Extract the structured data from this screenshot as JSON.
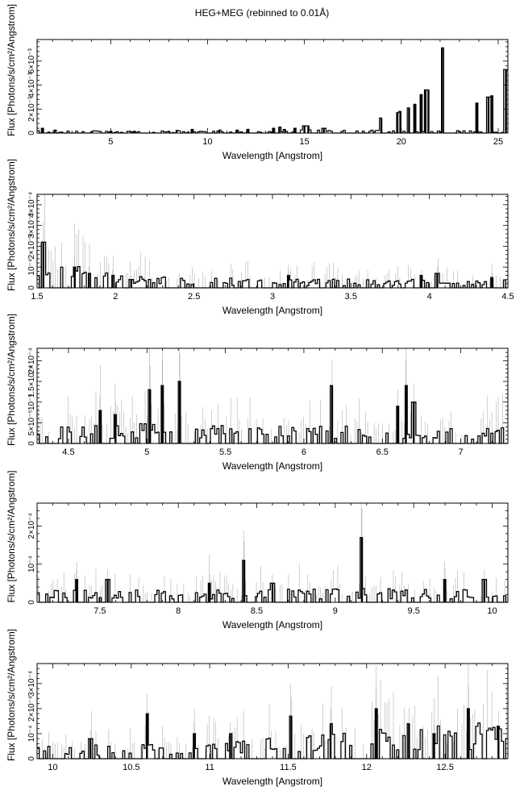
{
  "figure_title": "HEG+MEG (rebinned to 0.01Å)",
  "chart_data": [
    {
      "type": "line",
      "xlabel": "Wavelength [Angstrom]",
      "ylabel": "Flux [Photons/s/cm²/Angstrom]",
      "xlim": [
        1.2,
        25.5
      ],
      "ylim": [
        0,
        0.0078
      ],
      "xticks": [
        5,
        10,
        15,
        20,
        25
      ],
      "xtick_labels": [
        "5",
        "10",
        "15",
        "20",
        "25"
      ],
      "yticks": [
        0,
        0.002,
        0.004,
        0.006
      ],
      "ytick_labels": [
        "0",
        "2×10⁻³",
        "4×10⁻³",
        "6×10⁻³"
      ],
      "continuum": [
        [
          1.2,
          0.00015
        ],
        [
          10,
          0.00012
        ],
        [
          15,
          0.0002
        ],
        [
          25.5,
          0.00012
        ]
      ],
      "lines": [
        [
          1.5,
          0.0004
        ],
        [
          2.1,
          0.00025
        ],
        [
          5.0,
          0.00015
        ],
        [
          6.2,
          0.00015
        ],
        [
          8.4,
          0.00022
        ],
        [
          9.2,
          0.0003
        ],
        [
          10.6,
          0.00025
        ],
        [
          11.5,
          0.00025
        ],
        [
          12.1,
          0.0003
        ],
        [
          13.4,
          0.0004
        ],
        [
          13.7,
          0.0005
        ],
        [
          14.0,
          0.0003
        ],
        [
          14.5,
          0.0004
        ],
        [
          15.0,
          0.0006
        ],
        [
          15.2,
          0.0006
        ],
        [
          16.0,
          0.0004
        ],
        [
          18.97,
          0.00125
        ],
        [
          19.8,
          0.0017
        ],
        [
          19.95,
          0.0018
        ],
        [
          20.4,
          0.0021
        ],
        [
          20.7,
          0.0024
        ],
        [
          21.0,
          0.0032
        ],
        [
          21.25,
          0.0036
        ],
        [
          21.4,
          0.0036
        ],
        [
          22.1,
          0.0071
        ],
        [
          23.9,
          0.0025
        ],
        [
          24.5,
          0.003
        ],
        [
          24.65,
          0.0031
        ],
        [
          25.4,
          0.0053
        ]
      ]
    },
    {
      "type": "line",
      "xlabel": "Wavelength [Angstrom]",
      "ylabel": "Flux [Photons/s/cm²/Angstrom]",
      "xlim": [
        1.5,
        4.5
      ],
      "ylim": [
        0,
        0.00045
      ],
      "xticks": [
        1.5,
        2,
        2.5,
        3,
        3.5,
        4,
        4.5
      ],
      "xtick_labels": [
        "1.5",
        "2",
        "2.5",
        "3",
        "3.5",
        "4",
        "4.5"
      ],
      "yticks": [
        0,
        0.0001,
        0.0002,
        0.0003,
        0.0004
      ],
      "ytick_labels": [
        "0",
        "10⁻⁴",
        "2×10⁻⁴",
        "3×10⁻⁴",
        "4×10⁻⁴"
      ],
      "continuum": [
        [
          1.5,
          0.00012
        ],
        [
          2.0,
          5e-05
        ],
        [
          3.0,
          3e-05
        ],
        [
          4.5,
          3e-05
        ]
      ],
      "lines": [
        [
          1.54,
          0.00022
        ],
        [
          1.74,
          0.0001
        ],
        [
          1.83,
          7e-05
        ],
        [
          1.98,
          6e-05
        ],
        [
          2.1,
          4e-05
        ],
        [
          3.1,
          6e-05
        ],
        [
          3.95,
          6e-05
        ],
        [
          4.05,
          7e-05
        ],
        [
          4.4,
          5e-05
        ]
      ]
    },
    {
      "type": "line",
      "xlabel": "Wavelength [Angstrom]",
      "ylabel": "Flux [Photons/s/cm²/Angstrom]",
      "xlim": [
        4.3,
        7.3
      ],
      "ylim": [
        0,
        0.00023
      ],
      "xticks": [
        4.5,
        5,
        5.5,
        6,
        6.5,
        7
      ],
      "xtick_labels": [
        "4.5",
        "5",
        "5.5",
        "6",
        "6.5",
        "7"
      ],
      "yticks": [
        0,
        5e-05,
        0.0001,
        0.00015,
        0.0002
      ],
      "ytick_labels": [
        "0",
        "5×10⁻⁵",
        "10⁻⁴",
        "1.5×10⁻⁴",
        "2×10⁻⁴"
      ],
      "continuum": [
        [
          4.3,
          3e-05
        ],
        [
          5.0,
          3.5e-05
        ],
        [
          6.0,
          3e-05
        ],
        [
          7.3,
          3e-05
        ]
      ],
      "lines": [
        [
          4.7,
          8e-05
        ],
        [
          4.8,
          7e-05
        ],
        [
          5.02,
          0.00013
        ],
        [
          5.1,
          0.00014
        ],
        [
          5.21,
          0.00015
        ],
        [
          6.18,
          0.00014
        ],
        [
          6.65,
          0.00014
        ],
        [
          6.7,
          0.0001
        ],
        [
          6.6,
          9e-05
        ]
      ]
    },
    {
      "type": "line",
      "xlabel": "Wavelength [Angstrom]",
      "ylabel": "Flux [Photons/s/cm²/Angstrom]",
      "xlim": [
        7.1,
        10.1
      ],
      "ylim": [
        0,
        0.00026
      ],
      "xticks": [
        7.5,
        8,
        8.5,
        9,
        9.5,
        10
      ],
      "xtick_labels": [
        "7.5",
        "8",
        "8.5",
        "9",
        "9.5",
        "10"
      ],
      "yticks": [
        0,
        0.0001,
        0.0002
      ],
      "ytick_labels": [
        "0",
        "10⁻⁴",
        "2×10⁻⁴"
      ],
      "continuum": [
        [
          7.1,
          2.5e-05
        ],
        [
          8.0,
          2.5e-05
        ],
        [
          9.0,
          2.5e-05
        ],
        [
          10.1,
          2.5e-05
        ]
      ],
      "lines": [
        [
          7.35,
          6e-05
        ],
        [
          7.55,
          6e-05
        ],
        [
          8.2,
          5e-05
        ],
        [
          8.42,
          0.00011
        ],
        [
          8.6,
          5e-05
        ],
        [
          9.17,
          0.00017
        ],
        [
          9.7,
          6e-05
        ],
        [
          9.95,
          6e-05
        ]
      ]
    },
    {
      "type": "line",
      "xlabel": "Wavelength [Angstrom]",
      "ylabel": "Flux [Photons/s/cm²/Angstrom]",
      "xlim": [
        9.9,
        12.9
      ],
      "ylim": [
        0,
        0.00038
      ],
      "xticks": [
        10,
        10.5,
        11,
        11.5,
        12,
        12.5
      ],
      "xtick_labels": [
        "10",
        "10.5",
        "11",
        "11.5",
        "12",
        "12.5"
      ],
      "yticks": [
        0,
        0.0001,
        0.0002,
        0.0003
      ],
      "ytick_labels": [
        "0",
        "10⁻⁴",
        "2×10⁻⁴",
        "3×10⁻⁴"
      ],
      "continuum": [
        [
          9.9,
          3.5e-05
        ],
        [
          11.0,
          4.5e-05
        ],
        [
          12.0,
          8e-05
        ],
        [
          12.9,
          0.00011
        ]
      ],
      "lines": [
        [
          10.24,
          8e-05
        ],
        [
          10.6,
          0.00018
        ],
        [
          10.9,
          0.0001
        ],
        [
          11.13,
          0.0001
        ],
        [
          11.52,
          0.00017
        ],
        [
          11.77,
          0.00014
        ],
        [
          12.06,
          0.0002
        ],
        [
          12.27,
          0.00014
        ],
        [
          12.43,
          0.0001
        ],
        [
          12.65,
          0.0002
        ],
        [
          12.84,
          0.00013
        ]
      ]
    }
  ]
}
